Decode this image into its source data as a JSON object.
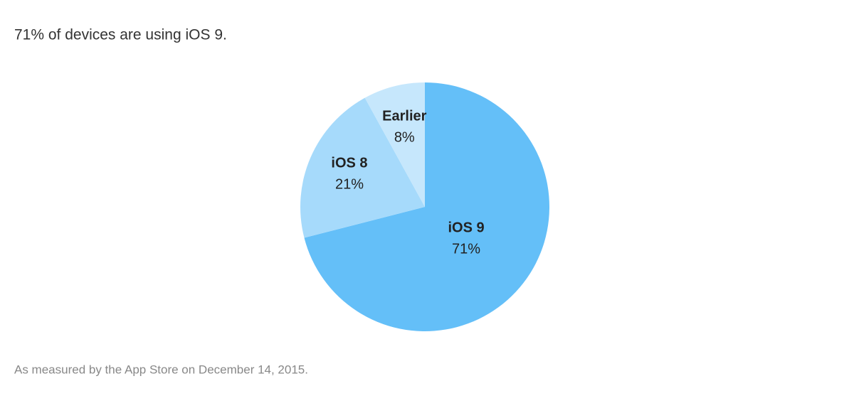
{
  "chart_data": {
    "type": "pie",
    "title": "71% of devices are using iOS 9.",
    "note": "As measured by the App Store on December 14, 2015.",
    "categories": [
      "iOS 9",
      "iOS 8",
      "Earlier"
    ],
    "values": [
      71,
      21,
      8
    ],
    "value_labels": [
      "71%",
      "21%",
      "8%"
    ],
    "colors": [
      "#64bff8",
      "#a6dafb",
      "#c6e7fc"
    ]
  }
}
